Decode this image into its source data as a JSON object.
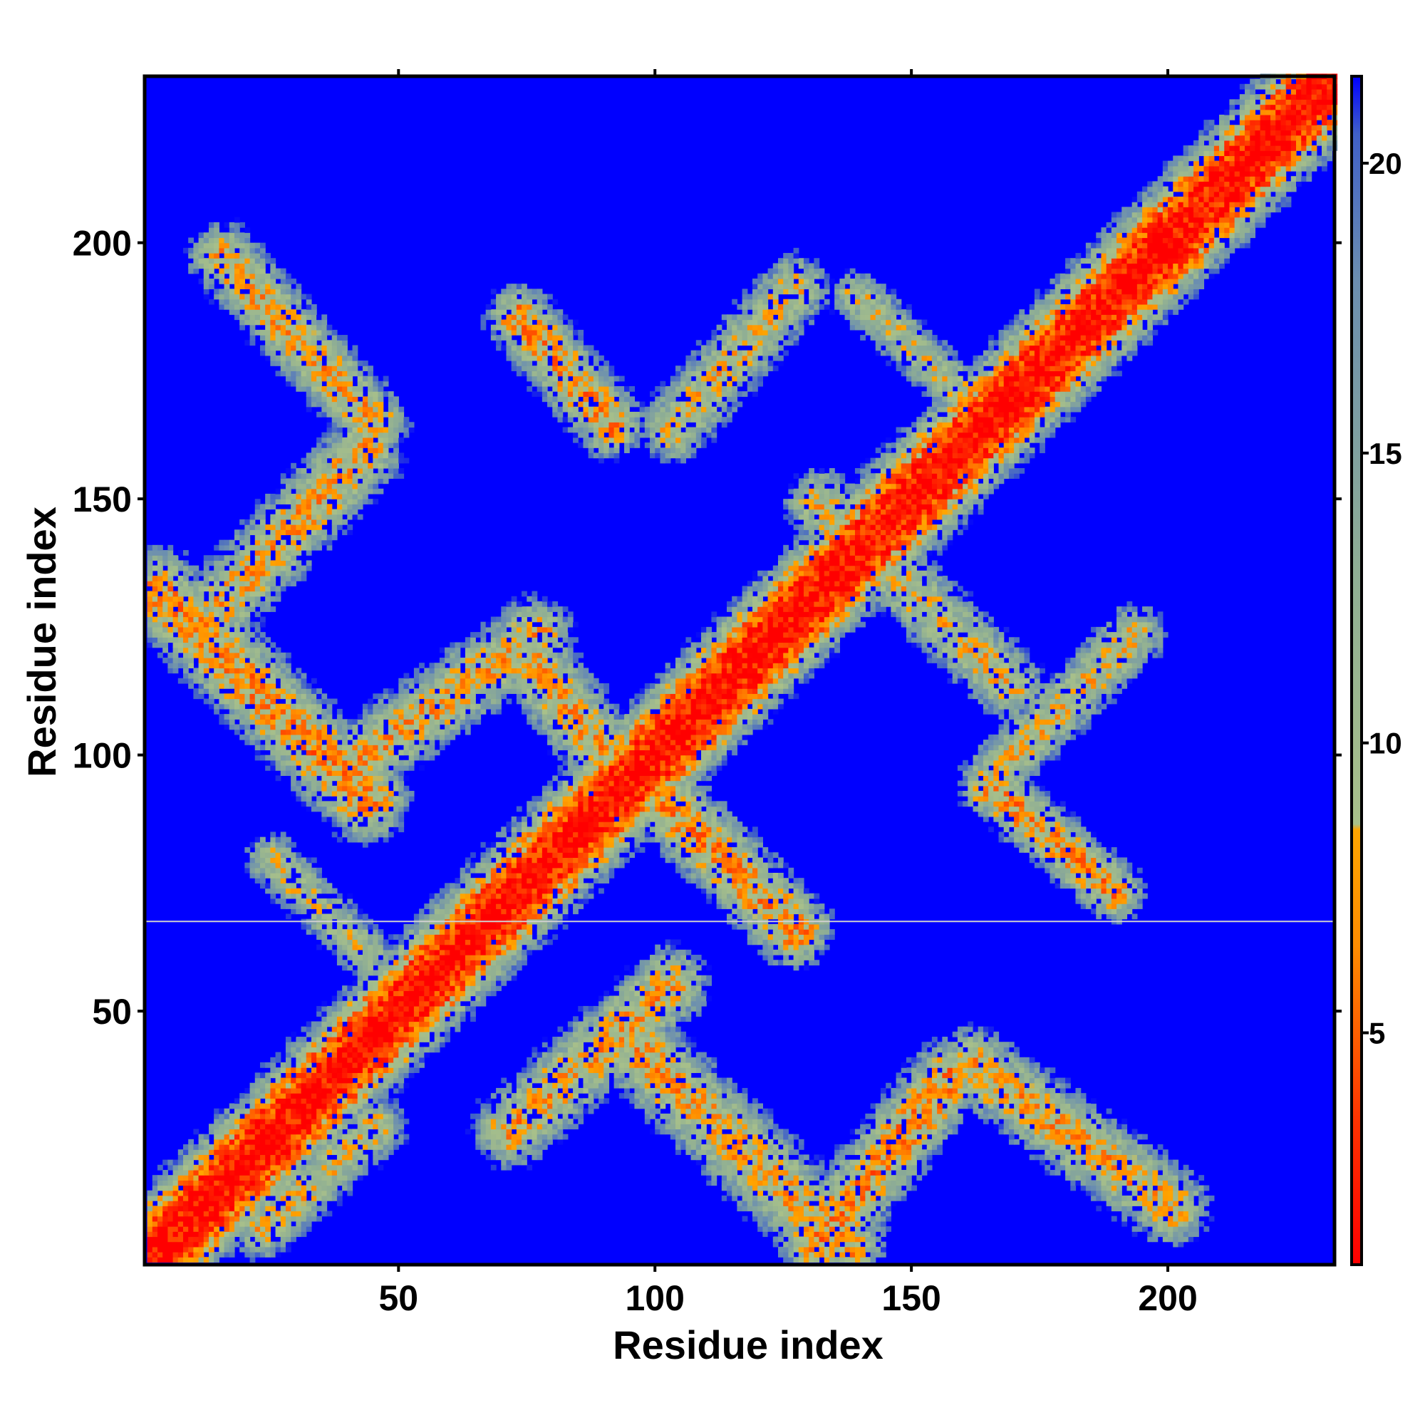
{
  "chart_data": {
    "type": "heatmap",
    "title": "",
    "xlabel": "Residue index",
    "ylabel": "Residue index",
    "n_residues": 232,
    "xlim": [
      1,
      232
    ],
    "ylim": [
      1,
      232
    ],
    "x_ticks": [
      50,
      100,
      150,
      200
    ],
    "y_ticks": [
      50,
      100,
      150,
      200
    ],
    "colorbar": {
      "ticks": [
        5,
        10,
        15,
        20
      ],
      "range": [
        1,
        21.5
      ],
      "stops": [
        {
          "value": 1.0,
          "color": "#ff0000"
        },
        {
          "value": 3.5,
          "color": "#ff3300"
        },
        {
          "value": 6.5,
          "color": "#ff8c00"
        },
        {
          "value": 8.5,
          "color": "#ffa500"
        },
        {
          "value": 8.6,
          "color": "#a8c08a"
        },
        {
          "value": 13.0,
          "color": "#8fae94"
        },
        {
          "value": 18.0,
          "color": "#6b8eb0"
        },
        {
          "value": 20.5,
          "color": "#4060c8"
        },
        {
          "value": 21.5,
          "color": "#0000ff"
        }
      ]
    },
    "background_color": "#0000ff",
    "cutoff": 21,
    "features": [
      {
        "type": "band",
        "orientation": "parallel",
        "from": [
          1,
          1
        ],
        "to": [
          232,
          232
        ],
        "width": 12,
        "min": 1
      },
      {
        "type": "band",
        "orientation": "anti",
        "from": [
          1,
          133
        ],
        "to": [
          45,
          89
        ],
        "width": 10,
        "min": 7
      },
      {
        "type": "band",
        "orientation": "anti",
        "from": [
          14,
          198
        ],
        "to": [
          46,
          163
        ],
        "width": 8,
        "min": 8
      },
      {
        "type": "band",
        "orientation": "parallel",
        "from": [
          14,
          128
        ],
        "to": [
          44,
          160
        ],
        "width": 9,
        "min": 8
      },
      {
        "type": "band",
        "orientation": "parallel",
        "from": [
          38,
          96
        ],
        "to": [
          78,
          124
        ],
        "width": 9,
        "min": 8
      },
      {
        "type": "band",
        "orientation": "anti",
        "from": [
          72,
          122
        ],
        "to": [
          96,
          92
        ],
        "width": 9,
        "min": 8
      },
      {
        "type": "band",
        "orientation": "anti",
        "from": [
          72,
          186
        ],
        "to": [
          92,
          163
        ],
        "width": 8,
        "min": 7
      },
      {
        "type": "band",
        "orientation": "parallel",
        "from": [
          102,
          162
        ],
        "to": [
          128,
          192
        ],
        "width": 8,
        "min": 9
      },
      {
        "type": "band",
        "orientation": "anti",
        "from": [
          98,
          94
        ],
        "to": [
          128,
          64
        ],
        "width": 9,
        "min": 7
      },
      {
        "type": "band",
        "orientation": "anti",
        "from": [
          96,
          42
        ],
        "to": [
          138,
          2
        ],
        "width": 10,
        "min": 8
      },
      {
        "type": "band",
        "orientation": "parallel",
        "from": [
          70,
          25
        ],
        "to": [
          104,
          56
        ],
        "width": 9,
        "min": 8
      },
      {
        "type": "band",
        "orientation": "parallel",
        "from": [
          130,
          3
        ],
        "to": [
          158,
          38
        ],
        "width": 9,
        "min": 7
      },
      {
        "type": "band",
        "orientation": "anti",
        "from": [
          160,
          40
        ],
        "to": [
          202,
          10
        ],
        "width": 9,
        "min": 8
      },
      {
        "type": "band",
        "orientation": "anti",
        "from": [
          164,
          94
        ],
        "to": [
          190,
          72
        ],
        "width": 7,
        "min": 7
      },
      {
        "type": "band",
        "orientation": "parallel",
        "from": [
          164,
          94
        ],
        "to": [
          194,
          124
        ],
        "width": 7,
        "min": 9
      },
      {
        "type": "band",
        "orientation": "anti",
        "from": [
          130,
          150
        ],
        "to": [
          170,
          112
        ],
        "width": 8,
        "min": 9
      },
      {
        "type": "band",
        "orientation": "parallel",
        "from": [
          22,
          6
        ],
        "to": [
          46,
          28
        ],
        "width": 7,
        "min": 9
      },
      {
        "type": "band",
        "orientation": "anti",
        "from": [
          24,
          80
        ],
        "to": [
          44,
          60
        ],
        "width": 6,
        "min": 10
      },
      {
        "type": "band",
        "orientation": "anti",
        "from": [
          138,
          190
        ],
        "to": [
          168,
          162
        ],
        "width": 6,
        "min": 10
      }
    ],
    "separator_line": {
      "y": 67.5,
      "color": "#d0d0d0"
    }
  }
}
